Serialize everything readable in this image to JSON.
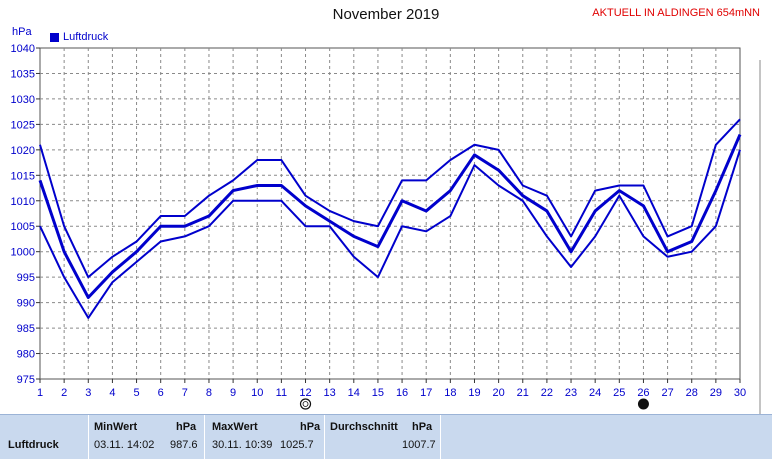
{
  "title": "November 2019",
  "live_label": "AKTUELL IN ALDINGEN 654mNN",
  "unit_label": "hPa",
  "legend": {
    "label": "Luftdruck",
    "color": "#0000cc"
  },
  "chart_data": {
    "type": "line",
    "x": [
      1,
      2,
      3,
      4,
      5,
      6,
      7,
      8,
      9,
      10,
      11,
      12,
      13,
      14,
      15,
      16,
      17,
      18,
      19,
      20,
      21,
      22,
      23,
      24,
      25,
      26,
      27,
      28,
      29,
      30
    ],
    "ylim": [
      975,
      1040
    ],
    "yticks": [
      975,
      980,
      985,
      990,
      995,
      1000,
      1005,
      1010,
      1015,
      1020,
      1025,
      1030,
      1035,
      1040
    ],
    "grid": true,
    "series": [
      {
        "name": "Luftdruck",
        "values": [
          1014,
          1000,
          991,
          996,
          1000,
          1005,
          1005,
          1007,
          1012,
          1013,
          1013,
          1009,
          1006,
          1003,
          1001,
          1010,
          1008,
          1012,
          1019,
          1016,
          1011,
          1008,
          1000,
          1008,
          1012,
          1009,
          1000,
          1002,
          1012,
          1023
        ]
      },
      {
        "values": [
          1021,
          1005,
          995,
          999,
          1002,
          1007,
          1007,
          1011,
          1014,
          1018,
          1018,
          1011,
          1008,
          1006,
          1005,
          1014,
          1014,
          1018,
          1021,
          1020,
          1013,
          1011,
          1003,
          1012,
          1013,
          1013,
          1003,
          1005,
          1021,
          1026
        ]
      },
      {
        "values": [
          1005,
          995,
          987,
          994,
          998,
          1002,
          1003,
          1005,
          1010,
          1010,
          1010,
          1005,
          1005,
          999,
          995,
          1005,
          1004,
          1007,
          1017,
          1013,
          1010,
          1003,
          997,
          1003,
          1011,
          1003,
          999,
          1000,
          1005,
          1020
        ]
      }
    ],
    "moon_markers": [
      {
        "day": 12,
        "phase": "full"
      },
      {
        "day": 26,
        "phase": "new"
      }
    ]
  },
  "stats": {
    "headers": {
      "min": "MinWert",
      "min_unit": "hPa",
      "max": "MaxWert",
      "max_unit": "hPa",
      "avg": "Durchschnitt",
      "avg_unit": "hPa"
    },
    "row": {
      "label": "Luftdruck",
      "min_time": "03.11.  14:02",
      "min_value": "987.6",
      "max_time": "30.11.  10:39",
      "max_value": "1025.7",
      "avg_value": "1007.7"
    }
  }
}
